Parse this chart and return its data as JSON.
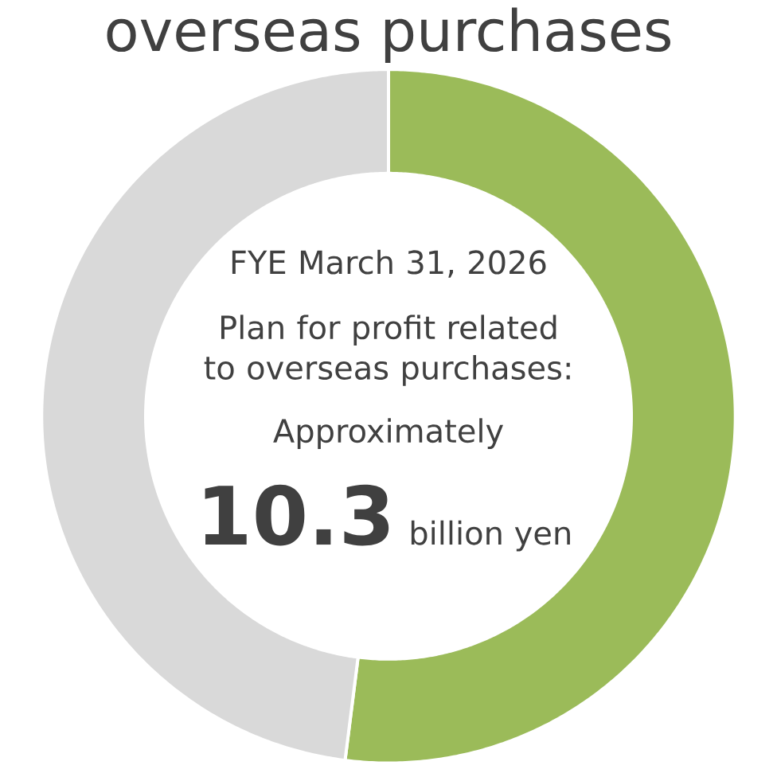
{
  "chart_data": {
    "type": "donut",
    "title": "overseas purchases",
    "categories": [
      null,
      null
    ],
    "values": [
      52,
      48
    ],
    "colors": [
      "#9bbb59",
      "#d9d9d9"
    ],
    "annotations": [
      "FYE March 31, 2026",
      "Plan for profit related to overseas purchases:",
      "Approximately",
      "10.3",
      "billion yen"
    ]
  }
}
